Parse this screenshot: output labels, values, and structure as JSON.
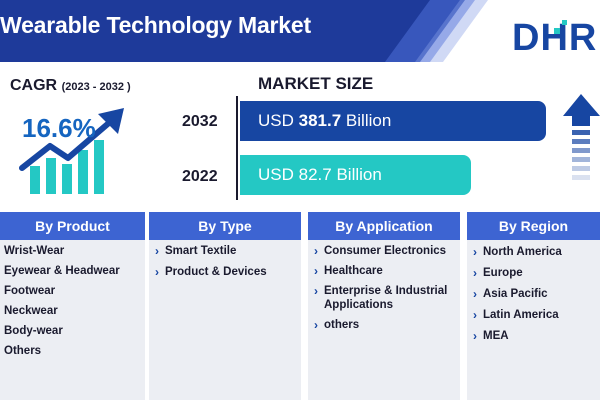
{
  "header": {
    "title": "Wearable Technology Market",
    "logo_text": "DHR",
    "band_color": "#1e3a9a",
    "accent_color": "#1746a2"
  },
  "cagr": {
    "label": "CAGR",
    "period": "(2023 - 2032 )",
    "value": "16.6%",
    "icon": "growth-chart-icon"
  },
  "market_size": {
    "title": "MARKET SIZE",
    "trend_icon": "up-arrow-icon"
  },
  "chart_data": {
    "type": "bar",
    "title": "MARKET SIZE",
    "categories": [
      "2032",
      "2022"
    ],
    "values": [
      381.7,
      82.7
    ],
    "labels": [
      "USD 381.7 Billion",
      "USD 82.7 Billion"
    ],
    "label_prefix": "USD",
    "label_numbers": [
      "381.7",
      "82.7"
    ],
    "label_suffix": "Billion",
    "colors": [
      "#1746a2",
      "#24c8c4"
    ],
    "orientation": "horizontal"
  },
  "segments": [
    {
      "heading": "By Product",
      "items": [
        "Wrist-Wear",
        "Eyewear & Headwear",
        "Footwear",
        "Neckwear",
        "Body-wear",
        "Others"
      ]
    },
    {
      "heading": "By Type",
      "items": [
        "Smart Textile",
        "Product & Devices"
      ]
    },
    {
      "heading": "By Application",
      "items": [
        "Consumer Electronics",
        "Healthcare",
        "Enterprise & Industrial Applications",
        "others"
      ]
    },
    {
      "heading": "By Region",
      "items": [
        "North America",
        "Europe",
        "Asia Pacific",
        "Latin America",
        "MEA"
      ]
    }
  ]
}
